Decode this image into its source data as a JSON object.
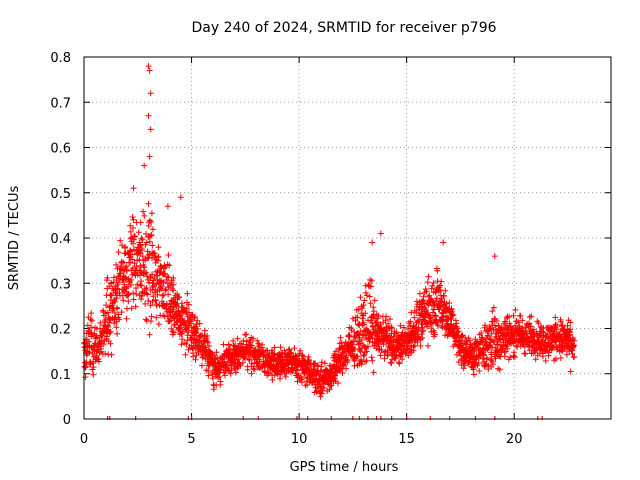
{
  "chart_data": {
    "type": "scatter",
    "title": "Day 240 of 2024, SRMTID for receiver p796",
    "xlabel": "GPS time / hours",
    "ylabel": "SRMTID / TECUs",
    "xlim": [
      0,
      24.5
    ],
    "ylim": [
      0,
      0.8
    ],
    "x_ticks": [
      0,
      5,
      10,
      15,
      20
    ],
    "x_tick_labels": [
      "0",
      "5",
      "10",
      "15",
      "20"
    ],
    "y_ticks": [
      0,
      0.1,
      0.2,
      0.3,
      0.4,
      0.5,
      0.6,
      0.7,
      0.8
    ],
    "y_tick_labels": [
      "0",
      "0.1",
      "0.2",
      "0.3",
      "0.4",
      "0.5",
      "0.6",
      "0.7",
      "0.8"
    ],
    "grid": true,
    "marker": "+",
    "marker_color": "#ff0000",
    "envelope": {
      "x": [
        0.0,
        0.3,
        0.6,
        1.0,
        1.3,
        1.6,
        2.0,
        2.3,
        2.6,
        2.9,
        3.0,
        3.3,
        3.6,
        4.0,
        4.4,
        4.8,
        5.2,
        5.6,
        6.0,
        6.5,
        7.0,
        7.5,
        8.0,
        8.5,
        9.0,
        9.5,
        10.0,
        10.5,
        11.0,
        11.5,
        12.0,
        12.5,
        13.0,
        13.3,
        13.6,
        14.0,
        14.5,
        15.0,
        15.5,
        16.0,
        16.5,
        17.0,
        17.5,
        18.0,
        18.5,
        19.0,
        19.5,
        20.0,
        20.5,
        21.0,
        21.5,
        22.0,
        22.5,
        22.8
      ],
      "center": [
        0.12,
        0.18,
        0.16,
        0.2,
        0.25,
        0.28,
        0.32,
        0.36,
        0.34,
        0.33,
        0.38,
        0.3,
        0.29,
        0.26,
        0.22,
        0.21,
        0.18,
        0.16,
        0.11,
        0.12,
        0.14,
        0.15,
        0.14,
        0.13,
        0.12,
        0.13,
        0.12,
        0.11,
        0.08,
        0.1,
        0.14,
        0.16,
        0.2,
        0.22,
        0.19,
        0.18,
        0.16,
        0.17,
        0.21,
        0.24,
        0.26,
        0.22,
        0.16,
        0.14,
        0.15,
        0.17,
        0.18,
        0.19,
        0.18,
        0.18,
        0.17,
        0.18,
        0.17,
        0.15
      ],
      "spread": [
        0.06,
        0.1,
        0.07,
        0.1,
        0.12,
        0.14,
        0.12,
        0.15,
        0.14,
        0.18,
        0.28,
        0.14,
        0.12,
        0.12,
        0.08,
        0.08,
        0.07,
        0.06,
        0.05,
        0.05,
        0.05,
        0.05,
        0.05,
        0.05,
        0.05,
        0.05,
        0.05,
        0.05,
        0.05,
        0.05,
        0.06,
        0.07,
        0.12,
        0.14,
        0.08,
        0.06,
        0.06,
        0.06,
        0.08,
        0.1,
        0.1,
        0.08,
        0.06,
        0.05,
        0.07,
        0.1,
        0.07,
        0.07,
        0.06,
        0.06,
        0.06,
        0.06,
        0.07,
        0.05
      ]
    },
    "outliers": [
      {
        "x": 3.0,
        "y": 0.78
      },
      {
        "x": 3.05,
        "y": 0.77
      },
      {
        "x": 3.1,
        "y": 0.72
      },
      {
        "x": 3.0,
        "y": 0.67
      },
      {
        "x": 3.1,
        "y": 0.64
      },
      {
        "x": 3.05,
        "y": 0.58
      },
      {
        "x": 2.8,
        "y": 0.56
      },
      {
        "x": 2.3,
        "y": 0.51
      },
      {
        "x": 4.5,
        "y": 0.49
      },
      {
        "x": 3.9,
        "y": 0.47
      },
      {
        "x": 13.8,
        "y": 0.41
      },
      {
        "x": 13.4,
        "y": 0.39
      },
      {
        "x": 16.7,
        "y": 0.39
      },
      {
        "x": 19.1,
        "y": 0.36
      }
    ],
    "zero_line_x": [
      1.1,
      1.2,
      2.4,
      4.85,
      5.0,
      7.4,
      8.1,
      9.9,
      10.4,
      11.5,
      12.5,
      12.8,
      13.2,
      13.6,
      13.8,
      14.3,
      15.0,
      16.1,
      17.0,
      18.2,
      19.1,
      21.1,
      21.3
    ]
  }
}
